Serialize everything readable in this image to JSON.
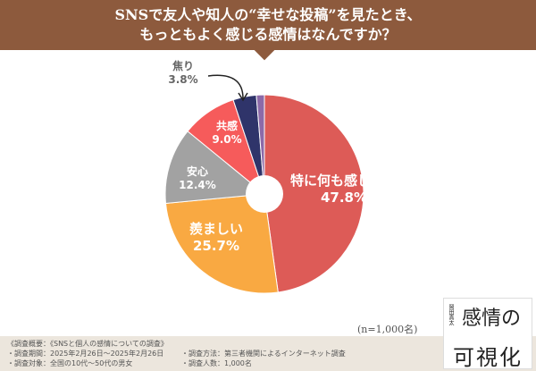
{
  "title": [
    "SNSで友人や知人の“幸せな投稿”を見たとき、",
    "もっともよく感じる感情はなんですか？"
  ],
  "chart_data": {
    "type": "pie",
    "donut": true,
    "slices": [
      {
        "label": "特に何も感じない",
        "value": 47.8,
        "display": "47.8%",
        "color": "#dd5b57"
      },
      {
        "label": "羨ましい",
        "value": 25.7,
        "display": "25.7%",
        "color": "#f9a942"
      },
      {
        "label": "安心",
        "value": 12.4,
        "display": "12.4%",
        "color": "#a2a2a2"
      },
      {
        "label": "共感",
        "value": 9.0,
        "display": "9.0%",
        "color": "#f65b5b"
      },
      {
        "label": "焦り",
        "value": 3.8,
        "display": "3.8%",
        "color": "#2f346a"
      },
      {
        "label": "",
        "value": 1.3,
        "display": "",
        "color": "#8c6aa8"
      }
    ]
  },
  "sample_note": "(n=1,000名)",
  "footer": {
    "heading": "《調査概要：《SNSと個人の感情についての調査》",
    "period": "・調査期間：2025年2月26日～2025年2月26日",
    "target": "・調査対象：全国の10代～50代の男女",
    "method": "・調査方法：第三者機関によるインターネット調査",
    "count": "・調査人数：1,000名"
  },
  "book": {
    "title_top": "感情の",
    "title_bottom": "可視化",
    "author": "岡田真太"
  }
}
